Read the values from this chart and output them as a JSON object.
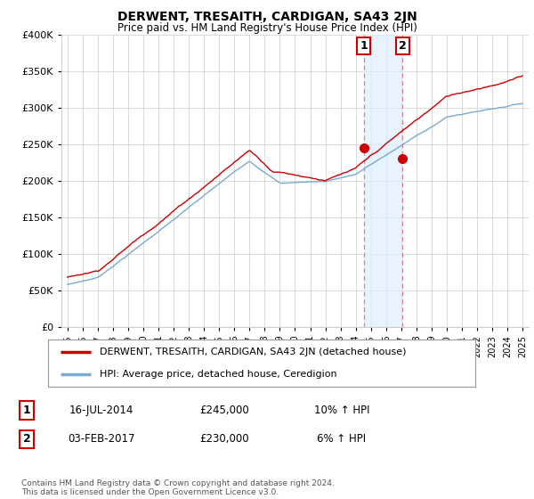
{
  "title": "DERWENT, TRESAITH, CARDIGAN, SA43 2JN",
  "subtitle": "Price paid vs. HM Land Registry's House Price Index (HPI)",
  "legend_line1": "DERWENT, TRESAITH, CARDIGAN, SA43 2JN (detached house)",
  "legend_line2": "HPI: Average price, detached house, Ceredigion",
  "annotation1_date": "16-JUL-2014",
  "annotation1_price": "£245,000",
  "annotation1_hpi": "10% ↑ HPI",
  "annotation2_date": "03-FEB-2017",
  "annotation2_price": "£230,000",
  "annotation2_hpi": "6% ↑ HPI",
  "footer": "Contains HM Land Registry data © Crown copyright and database right 2024.\nThis data is licensed under the Open Government Licence v3.0.",
  "ylim": [
    0,
    400000
  ],
  "yticks": [
    0,
    50000,
    100000,
    150000,
    200000,
    250000,
    300000,
    350000,
    400000
  ],
  "red_color": "#cc0000",
  "blue_color": "#7aaad0",
  "shade_color": "#ddeeff",
  "vline_color": "#e08080",
  "bg_color": "#ffffff",
  "grid_color": "#cccccc",
  "sale1_year": 2014.54,
  "sale1_price": 245000,
  "sale2_year": 2017.08,
  "sale2_price": 230000
}
